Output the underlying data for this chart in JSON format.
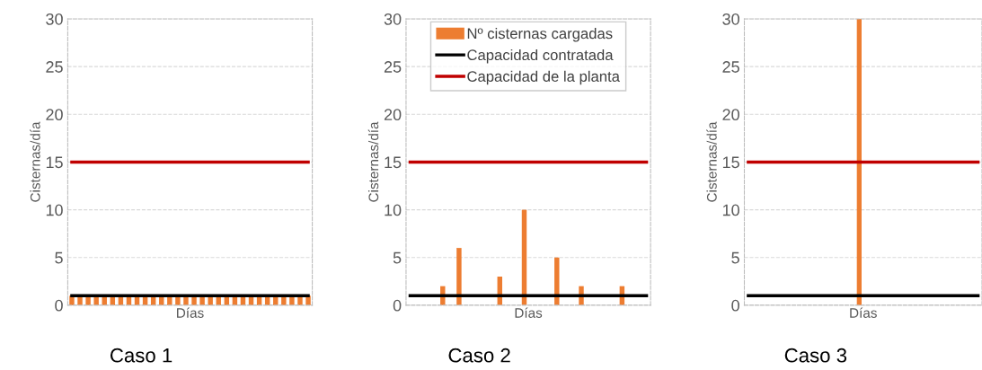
{
  "chart_data": [
    {
      "type": "bar",
      "xlabel": "Días",
      "ylabel": "Cisternas/día",
      "annotations": [
        "Caso 1"
      ],
      "categories": [
        null,
        null,
        null,
        null,
        null,
        null,
        null,
        null,
        null,
        null,
        null,
        null,
        null,
        null,
        null,
        null,
        null,
        null,
        null,
        null,
        null,
        null,
        null,
        null,
        null,
        null,
        null,
        null,
        null,
        null
      ],
      "ylim": [
        0,
        30
      ],
      "yticks": [
        0,
        5,
        10,
        15,
        20,
        25,
        30
      ],
      "grid": "y",
      "legend": false,
      "tick_labels": "y",
      "series": [
        {
          "color": "#ed7d31",
          "values": [
            1,
            1,
            1,
            1,
            1,
            1,
            1,
            1,
            1,
            1,
            1,
            1,
            1,
            1,
            1,
            1,
            1,
            1,
            1,
            1,
            1,
            1,
            1,
            1,
            1,
            1,
            1,
            1,
            1,
            1
          ]
        },
        {
          "type": "line",
          "color": "#000000",
          "values": [
            1,
            1,
            1,
            1,
            1,
            1,
            1,
            1,
            1,
            1,
            1,
            1,
            1,
            1,
            1,
            1,
            1,
            1,
            1,
            1,
            1,
            1,
            1,
            1,
            1,
            1,
            1,
            1,
            1,
            1
          ]
        },
        {
          "type": "line",
          "color": "#c00000",
          "values": [
            15,
            15,
            15,
            15,
            15,
            15,
            15,
            15,
            15,
            15,
            15,
            15,
            15,
            15,
            15,
            15,
            15,
            15,
            15,
            15,
            15,
            15,
            15,
            15,
            15,
            15,
            15,
            15,
            15,
            15
          ]
        }
      ]
    },
    {
      "type": "bar",
      "xlabel": "Días",
      "ylabel": "Cisternas/día",
      "annotations": [
        "Caso 2"
      ],
      "categories": [
        null,
        null,
        null,
        null,
        null,
        null,
        null,
        null,
        null,
        null,
        null,
        null,
        null,
        null,
        null,
        null,
        null,
        null,
        null,
        null,
        null,
        null,
        null,
        null,
        null,
        null,
        null,
        null,
        null,
        null
      ],
      "ylim": [
        0,
        30
      ],
      "yticks": [
        0,
        5,
        10,
        15,
        20,
        25,
        30
      ],
      "grid": "y",
      "legend": "top",
      "tick_labels": "y",
      "series": [
        {
          "name": "Nº cisternas cargadas",
          "color": "#ed7d31",
          "values": [
            null,
            null,
            null,
            null,
            2,
            null,
            6,
            null,
            null,
            null,
            null,
            3,
            null,
            null,
            10,
            null,
            null,
            null,
            5,
            null,
            null,
            2,
            null,
            null,
            null,
            null,
            2,
            null,
            null,
            null
          ]
        },
        {
          "type": "line",
          "name": "Capacidad contratada",
          "color": "#000000",
          "values": [
            1,
            1,
            1,
            1,
            1,
            1,
            1,
            1,
            1,
            1,
            1,
            1,
            1,
            1,
            1,
            1,
            1,
            1,
            1,
            1,
            1,
            1,
            1,
            1,
            1,
            1,
            1,
            1,
            1,
            1
          ]
        },
        {
          "type": "line",
          "name": "Capacidad de la planta",
          "color": "#c00000",
          "values": [
            15,
            15,
            15,
            15,
            15,
            15,
            15,
            15,
            15,
            15,
            15,
            15,
            15,
            15,
            15,
            15,
            15,
            15,
            15,
            15,
            15,
            15,
            15,
            15,
            15,
            15,
            15,
            15,
            15,
            15
          ]
        }
      ]
    },
    {
      "type": "bar",
      "xlabel": "Días",
      "ylabel": "Cisternas/día",
      "annotations": [
        "Caso 3"
      ],
      "categories": [
        null,
        null,
        null,
        null,
        null,
        null,
        null,
        null,
        null,
        null,
        null,
        null,
        null,
        null,
        null,
        null,
        null,
        null,
        null,
        null,
        null,
        null,
        null,
        null,
        null,
        null,
        null,
        null,
        null,
        null
      ],
      "ylim": [
        0,
        30
      ],
      "yticks": [
        0,
        5,
        10,
        15,
        20,
        25,
        30
      ],
      "grid": "y",
      "legend": false,
      "tick_labels": "y",
      "series": [
        {
          "color": "#ed7d31",
          "values": [
            null,
            null,
            null,
            null,
            null,
            null,
            null,
            null,
            null,
            null,
            null,
            null,
            null,
            null,
            30,
            null,
            null,
            null,
            null,
            null,
            null,
            null,
            null,
            null,
            null,
            null,
            null,
            null,
            null,
            null
          ]
        },
        {
          "type": "line",
          "color": "#000000",
          "values": [
            1,
            1,
            1,
            1,
            1,
            1,
            1,
            1,
            1,
            1,
            1,
            1,
            1,
            1,
            1,
            1,
            1,
            1,
            1,
            1,
            1,
            1,
            1,
            1,
            1,
            1,
            1,
            1,
            1,
            1
          ]
        },
        {
          "type": "line",
          "color": "#c00000",
          "values": [
            15,
            15,
            15,
            15,
            15,
            15,
            15,
            15,
            15,
            15,
            15,
            15,
            15,
            15,
            15,
            15,
            15,
            15,
            15,
            15,
            15,
            15,
            15,
            15,
            15,
            15,
            15,
            15,
            15,
            15
          ]
        }
      ]
    }
  ]
}
